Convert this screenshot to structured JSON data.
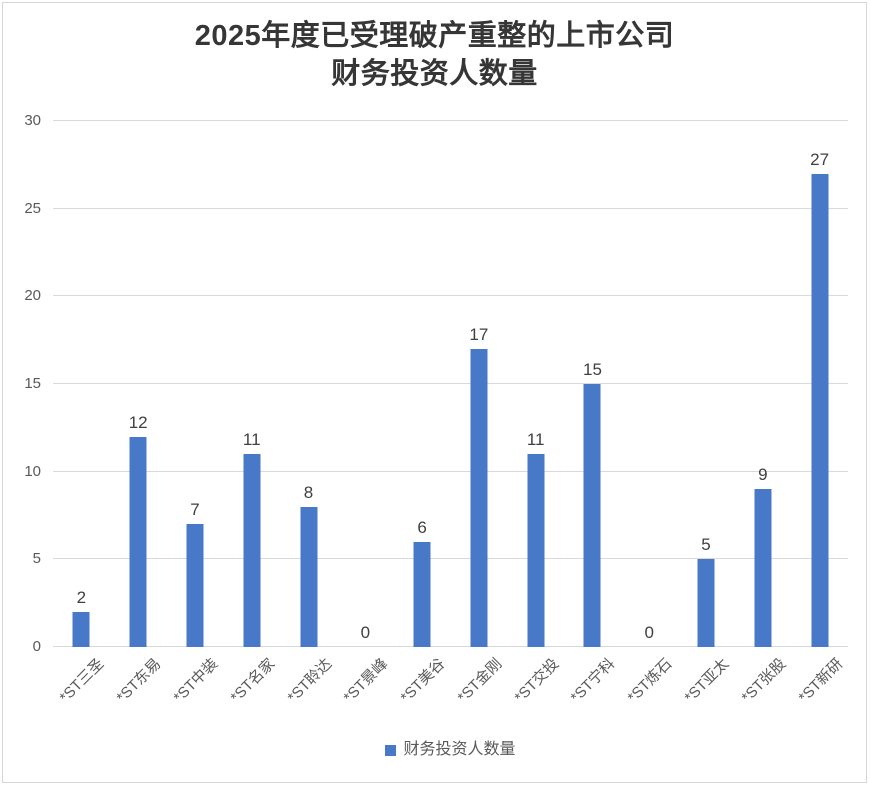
{
  "title": {
    "line1": "2025年度已受理破产重整的上市公司",
    "line2": "财务投资人数量"
  },
  "legend": {
    "label": "财务投资人数量"
  },
  "chart_data": {
    "type": "bar",
    "title": "2025年度已受理破产重整的上市公司 财务投资人数量",
    "categories": [
      "*ST三圣",
      "*ST东易",
      "*ST中装",
      "*ST名家",
      "*ST聆达",
      "*ST景峰",
      "*ST美谷",
      "*ST金刚",
      "*ST交投",
      "*ST宁科",
      "*ST炼石",
      "*ST亚太",
      "*ST张股",
      "*ST新研"
    ],
    "series": [
      {
        "name": "财务投资人数量",
        "values": [
          2,
          12,
          7,
          11,
          8,
          0,
          6,
          17,
          11,
          15,
          0,
          5,
          9,
          27
        ]
      }
    ],
    "xlabel": "",
    "ylabel": "",
    "ylim": [
      0,
      30
    ],
    "yticks": [
      0,
      5,
      10,
      15,
      20,
      25,
      30
    ],
    "grid": true,
    "legend_position": "bottom",
    "colors": {
      "bar": "#4878c8",
      "gridline": "#d9d9d9",
      "axis_text": "#595959",
      "data_label": "#404040",
      "title_text": "#363636",
      "frame_border": "#d6d6d6"
    }
  }
}
